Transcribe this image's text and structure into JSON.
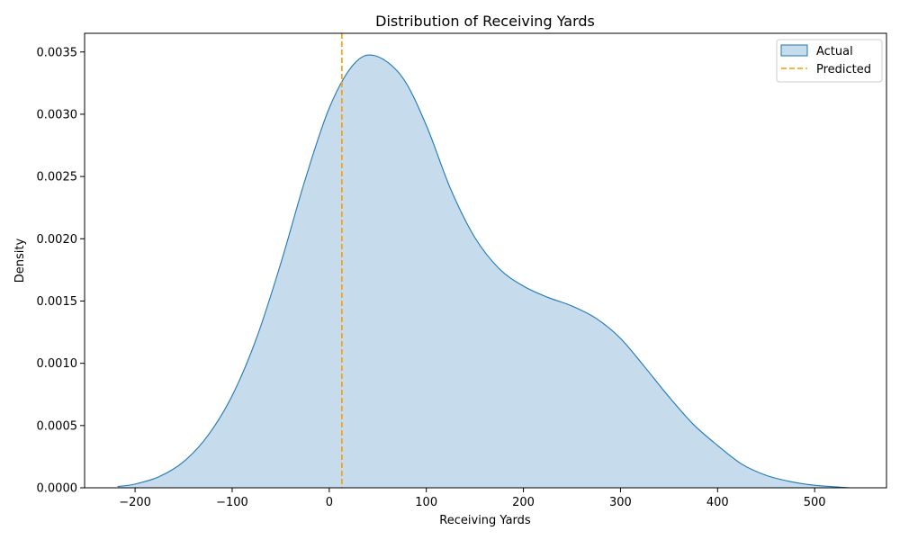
{
  "chart_data": {
    "type": "area",
    "title": "Distribution of Receiving Yards",
    "xlabel": "Receiving Yards",
    "ylabel": "Density",
    "xlim": [
      -252,
      574
    ],
    "ylim": [
      0,
      0.00365
    ],
    "xticks": [
      -200,
      -100,
      0,
      100,
      200,
      300,
      400,
      500
    ],
    "xtick_labels": [
      "−200",
      "−100",
      "0",
      "100",
      "200",
      "300",
      "400",
      "500"
    ],
    "yticks": [
      0,
      0.0005,
      0.001,
      0.0015,
      0.002,
      0.0025,
      0.003,
      0.0035
    ],
    "ytick_labels": [
      "0.0000",
      "0.0005",
      "0.0010",
      "0.0015",
      "0.0020",
      "0.0025",
      "0.0030",
      "0.0035"
    ],
    "grid": false,
    "legend_position": "top-right",
    "series": [
      {
        "name": "Actual",
        "kind": "kde-filled",
        "color": "#1f77b4",
        "fill": "#c6dcec",
        "x": [
          -218,
          -200,
          -175,
          -150,
          -125,
          -100,
          -75,
          -50,
          -25,
          0,
          25,
          47,
          75,
          100,
          125,
          150,
          175,
          200,
          225,
          250,
          275,
          300,
          325,
          350,
          375,
          400,
          425,
          450,
          475,
          500,
          536
        ],
        "y": [
          1e-05,
          3e-05,
          9e-05,
          0.00021,
          0.00042,
          0.00074,
          0.0012,
          0.0018,
          0.00247,
          0.00305,
          0.0034,
          0.00347,
          0.0033,
          0.00291,
          0.0024,
          0.00201,
          0.00176,
          0.00162,
          0.00153,
          0.00146,
          0.00136,
          0.0012,
          0.00097,
          0.00073,
          0.00051,
          0.00034,
          0.00019,
          0.0001,
          5e-05,
          2e-05,
          0.0
        ]
      },
      {
        "name": "Predicted",
        "kind": "vline",
        "color": "#ff9900",
        "x": 13
      }
    ]
  }
}
